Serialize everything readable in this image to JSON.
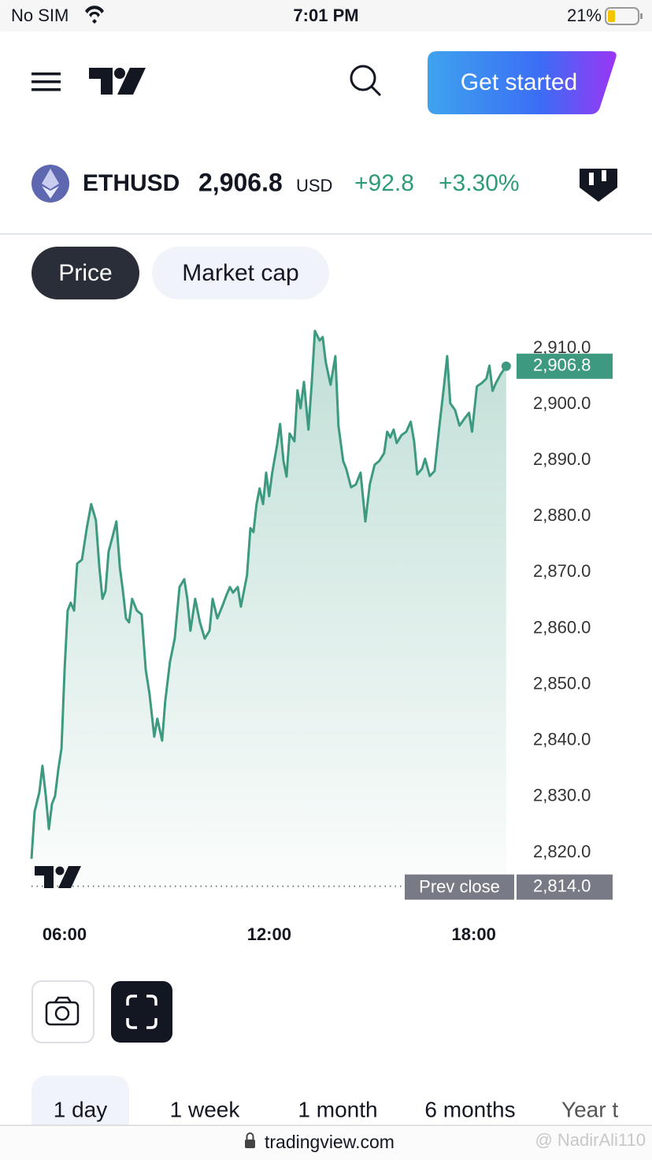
{
  "status_bar": {
    "carrier": "No SIM",
    "time": "7:01 PM",
    "battery": "21%"
  },
  "header": {
    "button": "Get started"
  },
  "ticker": {
    "symbol": "ETHUSD",
    "price": "2,906.8",
    "currency": "USD",
    "change": "+92.8",
    "change_percent": "+3.30%"
  },
  "tabs": [
    "Price",
    "Market cap"
  ],
  "chart_data": {
    "type": "line",
    "color": "#3d9a80",
    "x": [
      5.03,
      5.12,
      5.26,
      5.35,
      5.45,
      5.54,
      5.63,
      5.72,
      5.82,
      5.91,
      6.0,
      6.09,
      6.18,
      6.28,
      6.37,
      6.51,
      6.65,
      6.78,
      6.92,
      7.02,
      7.11,
      7.2,
      7.29,
      7.41,
      7.52,
      7.62,
      7.71,
      7.8,
      7.89,
      7.98,
      8.12,
      8.26,
      8.38,
      8.49,
      8.63,
      8.72,
      8.86,
      8.95,
      9.09,
      9.23,
      9.37,
      9.51,
      9.6,
      9.69,
      9.83,
      9.97,
      10.11,
      10.25,
      10.34,
      10.48,
      10.62,
      10.75,
      10.85,
      10.94,
      11.08,
      11.17,
      11.35,
      11.45,
      11.54,
      11.63,
      11.72,
      11.82,
      11.91,
      12.0,
      12.09,
      12.23,
      12.32,
      12.42,
      12.51,
      12.6,
      12.74,
      12.83,
      12.92,
      13.02,
      13.15,
      13.25,
      13.34,
      13.48,
      13.57,
      13.66,
      13.8,
      13.94,
      14.03,
      14.17,
      14.26,
      14.4,
      14.54,
      14.68,
      14.82,
      14.95,
      15.09,
      15.23,
      15.37,
      15.46,
      15.55,
      15.65,
      15.74,
      15.88,
      16.02,
      16.15,
      16.25,
      16.34,
      16.48,
      16.57,
      16.71,
      16.85,
      16.98,
      17.12,
      17.22,
      17.31,
      17.45,
      17.58,
      17.72,
      17.86,
      17.95,
      18.09,
      18.23,
      18.37,
      18.46,
      18.55,
      18.65,
      18.79,
      18.95
    ],
    "values": [
      2818.9,
      2827.3,
      2830.8,
      2835.5,
      2830.1,
      2824.2,
      2828.7,
      2830.1,
      2835.0,
      2838.6,
      2852.6,
      2863.2,
      2864.6,
      2863.2,
      2871.6,
      2872.3,
      2877.9,
      2882.2,
      2879.3,
      2870.9,
      2865.3,
      2866.7,
      2873.7,
      2876.5,
      2879.1,
      2870.9,
      2866.7,
      2861.8,
      2861.1,
      2865.3,
      2863.2,
      2862.5,
      2852.6,
      2848.4,
      2840.7,
      2843.9,
      2840.0,
      2847.0,
      2854.0,
      2858.2,
      2867.4,
      2868.8,
      2865.3,
      2859.6,
      2865.3,
      2861.1,
      2858.2,
      2859.6,
      2865.3,
      2861.8,
      2863.9,
      2866.0,
      2867.4,
      2866.4,
      2867.4,
      2863.9,
      2869.5,
      2877.9,
      2877.2,
      2882.2,
      2885.0,
      2882.2,
      2887.8,
      2883.6,
      2887.8,
      2892.7,
      2896.5,
      2889.9,
      2887.1,
      2894.8,
      2893.4,
      2902.5,
      2899.3,
      2904.0,
      2895.5,
      2904.0,
      2913.1,
      2911.4,
      2912.0,
      2907.5,
      2903.5,
      2908.6,
      2896.2,
      2889.9,
      2888.5,
      2885.2,
      2885.7,
      2887.8,
      2879.1,
      2885.7,
      2889.2,
      2889.9,
      2891.3,
      2895.1,
      2894.1,
      2895.5,
      2893.1,
      2894.5,
      2895.1,
      2896.9,
      2893.4,
      2887.5,
      2888.5,
      2890.3,
      2887.2,
      2888.1,
      2895.5,
      2903.0,
      2908.6,
      2900.2,
      2899.0,
      2896.2,
      2897.4,
      2898.5,
      2895.1,
      2903.2,
      2903.8,
      2904.6,
      2906.9,
      2902.4,
      2903.8,
      2905.4,
      2906.8
    ],
    "xlim": [
      5,
      19
    ],
    "xticks": [
      {
        "value": 6,
        "label": "06:00"
      },
      {
        "value": 12,
        "label": "12:00"
      },
      {
        "value": 18,
        "label": "18:00"
      }
    ],
    "ylim": [
      2812,
      2916
    ],
    "yticks": [
      {
        "value": 2820,
        "label": "2,820.0"
      },
      {
        "value": 2830,
        "label": "2,830.0"
      },
      {
        "value": 2840,
        "label": "2,840.0"
      },
      {
        "value": 2850,
        "label": "2,850.0"
      },
      {
        "value": 2860,
        "label": "2,860.0"
      },
      {
        "value": 2870,
        "label": "2,870.0"
      },
      {
        "value": 2880,
        "label": "2,880.0"
      },
      {
        "value": 2890,
        "label": "2,890.0"
      },
      {
        "value": 2900,
        "label": "2,900.0"
      },
      {
        "value": 2910,
        "label": "2,910.0"
      }
    ],
    "current": {
      "value": 2906.8,
      "label": "2,906.8"
    },
    "prev_close": {
      "label": "Prev close",
      "value": 2814.0,
      "value_label": "2,814.0"
    }
  },
  "ranges": [
    "1 day",
    "1 week",
    "1 month",
    "6 months",
    "Year t"
  ],
  "footer": {
    "url": "tradingview.com",
    "watermark": "@ NadirAli110"
  }
}
